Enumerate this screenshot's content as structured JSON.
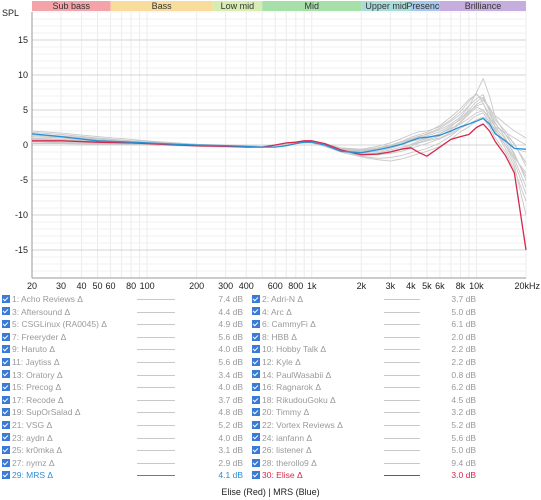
{
  "chart_data": {
    "type": "line",
    "ylabel": "SPL",
    "xscale": "log",
    "xlim": [
      20,
      20000
    ],
    "ylim": [
      -19,
      19
    ],
    "grid": true,
    "xticks": [
      {
        "v": 20,
        "l": "20"
      },
      {
        "v": 30,
        "l": "30"
      },
      {
        "v": 40,
        "l": "40"
      },
      {
        "v": 50,
        "l": "50"
      },
      {
        "v": 60,
        "l": "60"
      },
      {
        "v": 80,
        "l": "80"
      },
      {
        "v": 100,
        "l": "100"
      },
      {
        "v": 200,
        "l": "200"
      },
      {
        "v": 300,
        "l": "300"
      },
      {
        "v": 400,
        "l": "400"
      },
      {
        "v": 600,
        "l": "600"
      },
      {
        "v": 800,
        "l": "800"
      },
      {
        "v": 1000,
        "l": "1k"
      },
      {
        "v": 2000,
        "l": "2k"
      },
      {
        "v": 3000,
        "l": "3k"
      },
      {
        "v": 4000,
        "l": "4k"
      },
      {
        "v": 5000,
        "l": "5k"
      },
      {
        "v": 6000,
        "l": "6k"
      },
      {
        "v": 8000,
        "l": "8k"
      },
      {
        "v": 10000,
        "l": "10k"
      },
      {
        "v": 20000,
        "l": "20kHz"
      }
    ],
    "yticks": [
      15,
      10,
      5,
      0,
      -5,
      -10,
      -15
    ],
    "bands": [
      {
        "label": "Sub bass",
        "from": 20,
        "to": 60,
        "color": "#f4a3a8"
      },
      {
        "label": "Bass",
        "from": 60,
        "to": 250,
        "color": "#f7dc9c"
      },
      {
        "label": "Low mid",
        "from": 250,
        "to": 500,
        "color": "#d6ecb1"
      },
      {
        "label": "Mid",
        "from": 500,
        "to": 2000,
        "color": "#a6dfa8"
      },
      {
        "label": "Upper mid",
        "from": 2000,
        "to": 4000,
        "color": "#a9dcd9"
      },
      {
        "label": "Presence",
        "from": 4000,
        "to": 6000,
        "color": "#a7c6ec"
      },
      {
        "label": "Brilliance",
        "from": 6000,
        "to": 20000,
        "color": "#c5aede"
      }
    ],
    "x": [
      20,
      30,
      50,
      80,
      100,
      150,
      200,
      300,
      400,
      500,
      600,
      700,
      800,
      900,
      1000,
      1200,
      1500,
      2000,
      2500,
      3000,
      3500,
      4000,
      4500,
      5000,
      6000,
      7000,
      8000,
      9000,
      10000,
      11000,
      12000,
      13000,
      15000,
      17000,
      20000
    ],
    "series": [
      {
        "name": "Elise",
        "color": "#d6284a",
        "highlight": true,
        "values": [
          0.6,
          0.6,
          0.4,
          0.3,
          0.2,
          0.0,
          -0.1,
          -0.2,
          -0.3,
          -0.3,
          0.0,
          0.3,
          0.4,
          0.6,
          0.6,
          0.2,
          -0.7,
          -1.4,
          -1.3,
          -1.0,
          -0.6,
          -0.4,
          -1.1,
          -1.6,
          -0.3,
          0.8,
          1.2,
          1.5,
          2.5,
          3.0,
          2.0,
          0.5,
          -1.5,
          -4.0,
          -15.0
        ]
      },
      {
        "name": "MRS",
        "color": "#2b8fd6",
        "highlight": true,
        "values": [
          1.6,
          1.2,
          0.6,
          0.4,
          0.3,
          0.1,
          0.0,
          -0.1,
          -0.2,
          -0.3,
          -0.3,
          -0.1,
          0.2,
          0.4,
          0.4,
          0.0,
          -0.9,
          -1.1,
          -0.7,
          -0.3,
          0.1,
          0.6,
          1.0,
          1.1,
          1.4,
          2.0,
          2.6,
          3.0,
          3.4,
          3.8,
          3.0,
          1.6,
          0.6,
          -0.5,
          -0.6
        ]
      },
      {
        "name": "",
        "color": "#c9c9c9",
        "values": [
          1.0,
          0.8,
          0.5,
          0.3,
          0.2,
          0.0,
          0.0,
          -0.2,
          -0.2,
          -0.2,
          0.0,
          0.2,
          0.4,
          0.5,
          0.5,
          0.1,
          -0.6,
          -0.9,
          -0.6,
          -0.2,
          0.4,
          0.9,
          1.3,
          1.5,
          2.2,
          3.0,
          4.0,
          5.5,
          7.5,
          9.5,
          7.0,
          4.0,
          1.5,
          -0.5,
          -1.0
        ]
      },
      {
        "name": "",
        "color": "#c9c9c9",
        "values": [
          2.0,
          1.7,
          1.2,
          0.8,
          0.6,
          0.3,
          0.1,
          -0.1,
          -0.2,
          -0.2,
          -0.1,
          0.2,
          0.3,
          0.4,
          0.3,
          -0.1,
          -0.8,
          -1.2,
          -0.9,
          -0.5,
          0.0,
          0.5,
          0.8,
          1.0,
          1.6,
          2.6,
          3.8,
          5.0,
          6.2,
          6.8,
          5.0,
          3.2,
          1.0,
          -1.5,
          -4.5
        ]
      },
      {
        "name": "",
        "color": "#c9c9c9",
        "values": [
          0.3,
          0.3,
          0.2,
          0.2,
          0.1,
          0.0,
          -0.1,
          -0.2,
          -0.3,
          -0.3,
          -0.1,
          0.2,
          0.4,
          0.5,
          0.5,
          0.0,
          -0.8,
          -1.6,
          -1.9,
          -1.8,
          -1.5,
          -1.1,
          -0.8,
          -0.5,
          0.3,
          1.3,
          2.4,
          3.4,
          4.2,
          4.6,
          3.2,
          1.8,
          0.0,
          -2.0,
          -6.0
        ]
      },
      {
        "name": "",
        "color": "#c9c9c9",
        "values": [
          1.4,
          1.1,
          0.7,
          0.5,
          0.4,
          0.2,
          0.0,
          -0.1,
          -0.2,
          -0.2,
          0.0,
          0.2,
          0.4,
          0.5,
          0.5,
          0.2,
          -0.4,
          -0.6,
          -0.2,
          0.3,
          0.9,
          1.5,
          1.9,
          2.0,
          2.6,
          3.6,
          4.8,
          6.2,
          7.4,
          6.0,
          3.8,
          2.6,
          1.8,
          1.0,
          0.0
        ]
      },
      {
        "name": "",
        "color": "#c9c9c9",
        "values": [
          0.8,
          0.7,
          0.5,
          0.3,
          0.2,
          0.1,
          0.0,
          -0.1,
          -0.2,
          -0.2,
          -0.1,
          0.1,
          0.3,
          0.4,
          0.4,
          0.0,
          -0.9,
          -1.3,
          -1.2,
          -1.0,
          -0.6,
          -0.2,
          0.3,
          0.6,
          1.0,
          1.8,
          3.2,
          4.4,
          5.4,
          5.0,
          3.6,
          2.0,
          -0.5,
          -3.0,
          -10.0
        ]
      },
      {
        "name": "",
        "color": "#c9c9c9",
        "values": [
          1.8,
          1.5,
          1.0,
          0.6,
          0.5,
          0.3,
          0.1,
          0.0,
          -0.1,
          -0.2,
          -0.1,
          0.1,
          0.3,
          0.4,
          0.4,
          0.0,
          -0.7,
          -1.0,
          -0.7,
          -0.3,
          0.2,
          0.7,
          1.2,
          1.6,
          2.4,
          3.4,
          4.4,
          5.6,
          6.6,
          7.2,
          4.8,
          2.4,
          0.0,
          -2.5,
          -7.0
        ]
      },
      {
        "name": "",
        "color": "#c9c9c9",
        "values": [
          0.5,
          0.4,
          0.3,
          0.2,
          0.1,
          0.0,
          -0.1,
          -0.2,
          -0.3,
          -0.3,
          -0.1,
          0.1,
          0.3,
          0.4,
          0.4,
          0.0,
          -0.7,
          -1.2,
          -1.2,
          -0.9,
          -0.5,
          0.0,
          0.4,
          0.7,
          1.3,
          2.2,
          3.3,
          4.6,
          5.8,
          6.4,
          5.4,
          3.6,
          2.0,
          0.0,
          -2.5
        ]
      },
      {
        "name": "",
        "color": "#c9c9c9",
        "values": [
          1.2,
          1.0,
          0.6,
          0.4,
          0.3,
          0.1,
          0.0,
          -0.1,
          -0.2,
          -0.2,
          -0.1,
          0.1,
          0.3,
          0.4,
          0.3,
          -0.1,
          -0.9,
          -1.4,
          -1.1,
          -0.7,
          -0.3,
          0.1,
          0.6,
          0.9,
          1.6,
          2.4,
          3.0,
          3.8,
          4.6,
          4.9,
          4.0,
          2.6,
          0.8,
          -1.2,
          -5.0
        ]
      },
      {
        "name": "",
        "color": "#c9c9c9",
        "values": [
          0.2,
          0.2,
          0.1,
          0.1,
          0.0,
          -0.1,
          -0.2,
          -0.3,
          -0.3,
          -0.3,
          -0.1,
          0.1,
          0.3,
          0.3,
          0.3,
          -0.2,
          -1.0,
          -1.7,
          -2.1,
          -2.3,
          -2.0,
          -1.6,
          -1.2,
          -0.9,
          -0.2,
          0.8,
          1.9,
          2.6,
          3.4,
          3.8,
          2.6,
          1.0,
          -1.0,
          -3.5,
          -8.0
        ]
      },
      {
        "name": "",
        "color": "#c9c9c9",
        "values": [
          1.6,
          1.3,
          0.9,
          0.6,
          0.5,
          0.2,
          0.1,
          -0.1,
          -0.1,
          -0.2,
          0.0,
          0.2,
          0.3,
          0.4,
          0.4,
          0.1,
          -0.5,
          -0.7,
          -0.4,
          0.0,
          0.5,
          1.1,
          1.5,
          1.8,
          2.8,
          4.0,
          5.2,
          6.5,
          7.2,
          6.5,
          5.2,
          4.2,
          3.0,
          2.0,
          1.0
        ]
      },
      {
        "name": "",
        "color": "#c9c9c9",
        "values": [
          0.9,
          0.8,
          0.5,
          0.3,
          0.2,
          0.1,
          0.0,
          -0.2,
          -0.2,
          -0.3,
          -0.1,
          0.1,
          0.3,
          0.4,
          0.4,
          0.0,
          -0.8,
          -1.4,
          -1.4,
          -1.2,
          -0.9,
          -0.5,
          -0.1,
          0.2,
          0.9,
          1.6,
          2.4,
          3.0,
          3.6,
          4.0,
          3.4,
          2.2,
          0.4,
          -1.8,
          -4.0
        ]
      },
      {
        "name": "",
        "color": "#c9c9c9",
        "values": [
          1.5,
          1.2,
          0.8,
          0.5,
          0.4,
          0.2,
          0.0,
          -0.1,
          -0.2,
          -0.2,
          0.0,
          0.2,
          0.4,
          0.5,
          0.5,
          0.1,
          -0.6,
          -0.8,
          -0.5,
          -0.1,
          0.4,
          0.8,
          1.1,
          1.3,
          1.9,
          2.8,
          3.6,
          4.8,
          5.6,
          5.9,
          4.4,
          3.0,
          1.5,
          0.2,
          -3.0
        ]
      }
    ]
  },
  "legend": {
    "left": [
      {
        "name": "1: Acho Reviews Δ",
        "value": "7.4 dB"
      },
      {
        "name": "3: Aftersound Δ",
        "value": "4.4 dB"
      },
      {
        "name": "5: CSGLinux (RA0045) Δ",
        "value": "4.9 dB"
      },
      {
        "name": "7: Freeryder Δ",
        "value": "5.6 dB"
      },
      {
        "name": "9: Haruto Δ",
        "value": "4.0 dB"
      },
      {
        "name": "11: Jaytiss Δ",
        "value": "5.6 dB"
      },
      {
        "name": "13: Oratory Δ",
        "value": "3.4 dB"
      },
      {
        "name": "15: Precog Δ",
        "value": "4.0 dB"
      },
      {
        "name": "17: Recode Δ",
        "value": "3.7 dB"
      },
      {
        "name": "19: SupOrSalad Δ",
        "value": "4.8 dB"
      },
      {
        "name": "21: VSG Δ",
        "value": "5.2 dB"
      },
      {
        "name": "23: aydn Δ",
        "value": "4.0 dB"
      },
      {
        "name": "25: kr0mka Δ",
        "value": "3.1 dB"
      },
      {
        "name": "27: nymz Δ",
        "value": "2.9 dB"
      },
      {
        "name": "29: MRS Δ",
        "value": "4.1 dB",
        "style": "blue"
      }
    ],
    "right": [
      {
        "name": "2: Adri-N Δ",
        "value": "3.7 dB"
      },
      {
        "name": "4: Arc Δ",
        "value": "5.0 dB"
      },
      {
        "name": "6: CammyFi Δ",
        "value": "6.1 dB"
      },
      {
        "name": "8: HBB Δ",
        "value": "2.0 dB"
      },
      {
        "name": "10: Hobby Talk Δ",
        "value": "2.2 dB"
      },
      {
        "name": "12: Kyle Δ",
        "value": "2.2 dB"
      },
      {
        "name": "14: PaulWasabii Δ",
        "value": "0.8 dB"
      },
      {
        "name": "16: Ragnarok Δ",
        "value": "6.2 dB"
      },
      {
        "name": "18: RikudouGoku Δ",
        "value": "4.5 dB"
      },
      {
        "name": "20: Timmy Δ",
        "value": "3.2 dB"
      },
      {
        "name": "22: Vortex Reviews Δ",
        "value": "5.2 dB"
      },
      {
        "name": "24: ianfann Δ",
        "value": "5.6 dB"
      },
      {
        "name": "26: listener Δ",
        "value": "5.0 dB"
      },
      {
        "name": "28: therollo9 Δ",
        "value": "9.4 dB"
      },
      {
        "name": "30: Elise Δ",
        "value": "3.0 dB",
        "style": "red"
      }
    ]
  },
  "footer": "Elise (Red) | MRS (Blue)"
}
